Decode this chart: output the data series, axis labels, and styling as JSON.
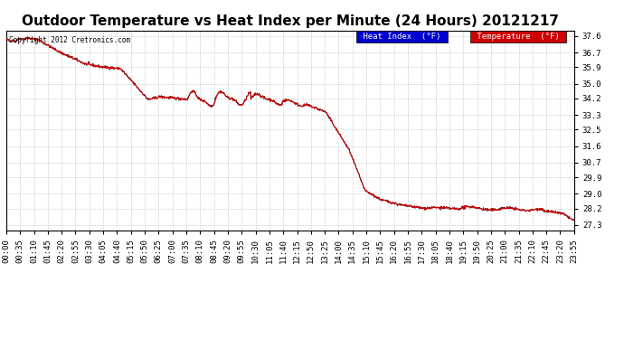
{
  "title": "Outdoor Temperature vs Heat Index per Minute (24 Hours) 20121217",
  "copyright": "Copyright 2012 Cretronics.com",
  "legend_heat_index": "Heat Index  (°F)",
  "legend_temperature": "Temperature  (°F)",
  "yticks": [
    27.3,
    28.2,
    29.0,
    29.9,
    30.7,
    31.6,
    32.5,
    33.3,
    34.2,
    35.0,
    35.9,
    36.7,
    37.6
  ],
  "ylim": [
    27.0,
    37.9
  ],
  "bg_color": "#ffffff",
  "grid_color": "#aaaaaa",
  "line_color_temp": "#cc0000",
  "line_color_heat": "#000000",
  "title_fontsize": 11,
  "tick_fontsize": 6.5,
  "legend_heat_bg": "#0000cc",
  "legend_temp_bg": "#cc0000",
  "xtick_labels": [
    "00:00",
    "00:35",
    "01:10",
    "01:45",
    "02:20",
    "02:55",
    "03:30",
    "04:05",
    "04:40",
    "05:15",
    "05:50",
    "06:25",
    "07:00",
    "07:35",
    "08:10",
    "08:45",
    "09:20",
    "09:55",
    "10:30",
    "11:05",
    "11:40",
    "12:15",
    "12:50",
    "13:25",
    "14:00",
    "14:35",
    "15:10",
    "15:45",
    "16:20",
    "16:55",
    "17:30",
    "18:05",
    "18:40",
    "19:15",
    "19:50",
    "20:25",
    "21:00",
    "21:35",
    "22:10",
    "22:45",
    "23:20",
    "23:55"
  ]
}
